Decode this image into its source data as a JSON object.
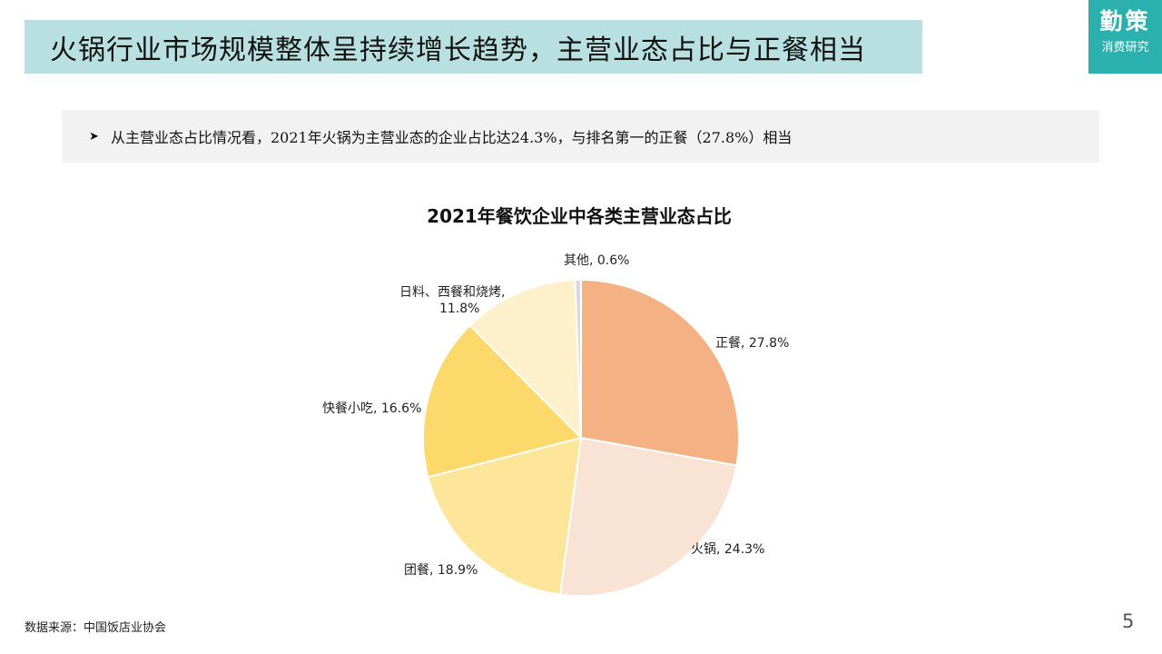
{
  "header": {
    "title": "火锅行业市场规模整体呈持续增长趋势，主营业态占比与正餐相当"
  },
  "logo": {
    "main": "勤策",
    "sub": "消费研究"
  },
  "note": {
    "bullet_icon": "arrow-bullet-icon",
    "text": "从主营业态占比情况看，2021年火锅为主营业态的企业占比达24.3%，与排名第一的正餐（27.8%）相当"
  },
  "chart_data": {
    "type": "pie",
    "title": "2021年餐饮企业中各类主营业态占比",
    "slices": [
      {
        "name": "正餐",
        "value": 27.8,
        "label": "正餐, 27.8%",
        "color": "#f4b183"
      },
      {
        "name": "火锅",
        "value": 24.3,
        "label": "火锅, 24.3%",
        "color": "#f9e3d5"
      },
      {
        "name": "团餐",
        "value": 18.9,
        "label": "团餐, 18.9%",
        "color": "#fde59a"
      },
      {
        "name": "快餐小吃",
        "value": 16.6,
        "label": "快餐小吃, 16.6%",
        "color": "#fdd86b"
      },
      {
        "name": "日料、西餐和烧烤",
        "value": 11.8,
        "label": "日料、西餐和烧烤, 11.8%",
        "label_lines": [
          "日料、西餐和烧烤,",
          "11.8%"
        ],
        "color": "#fef0cb"
      },
      {
        "name": "其他",
        "value": 0.6,
        "label": "其他, 0.6%",
        "color": "#d9d9d9"
      }
    ],
    "start_angle_deg": 0,
    "direction": "clockwise"
  },
  "footer": {
    "source": "数据来源：中国饭店业协会",
    "page_number": "5"
  },
  "colors": {
    "title_bar": "#b8e0e0",
    "logo_bg": "#2bb1ad",
    "note_bg": "#f2f2f2"
  }
}
